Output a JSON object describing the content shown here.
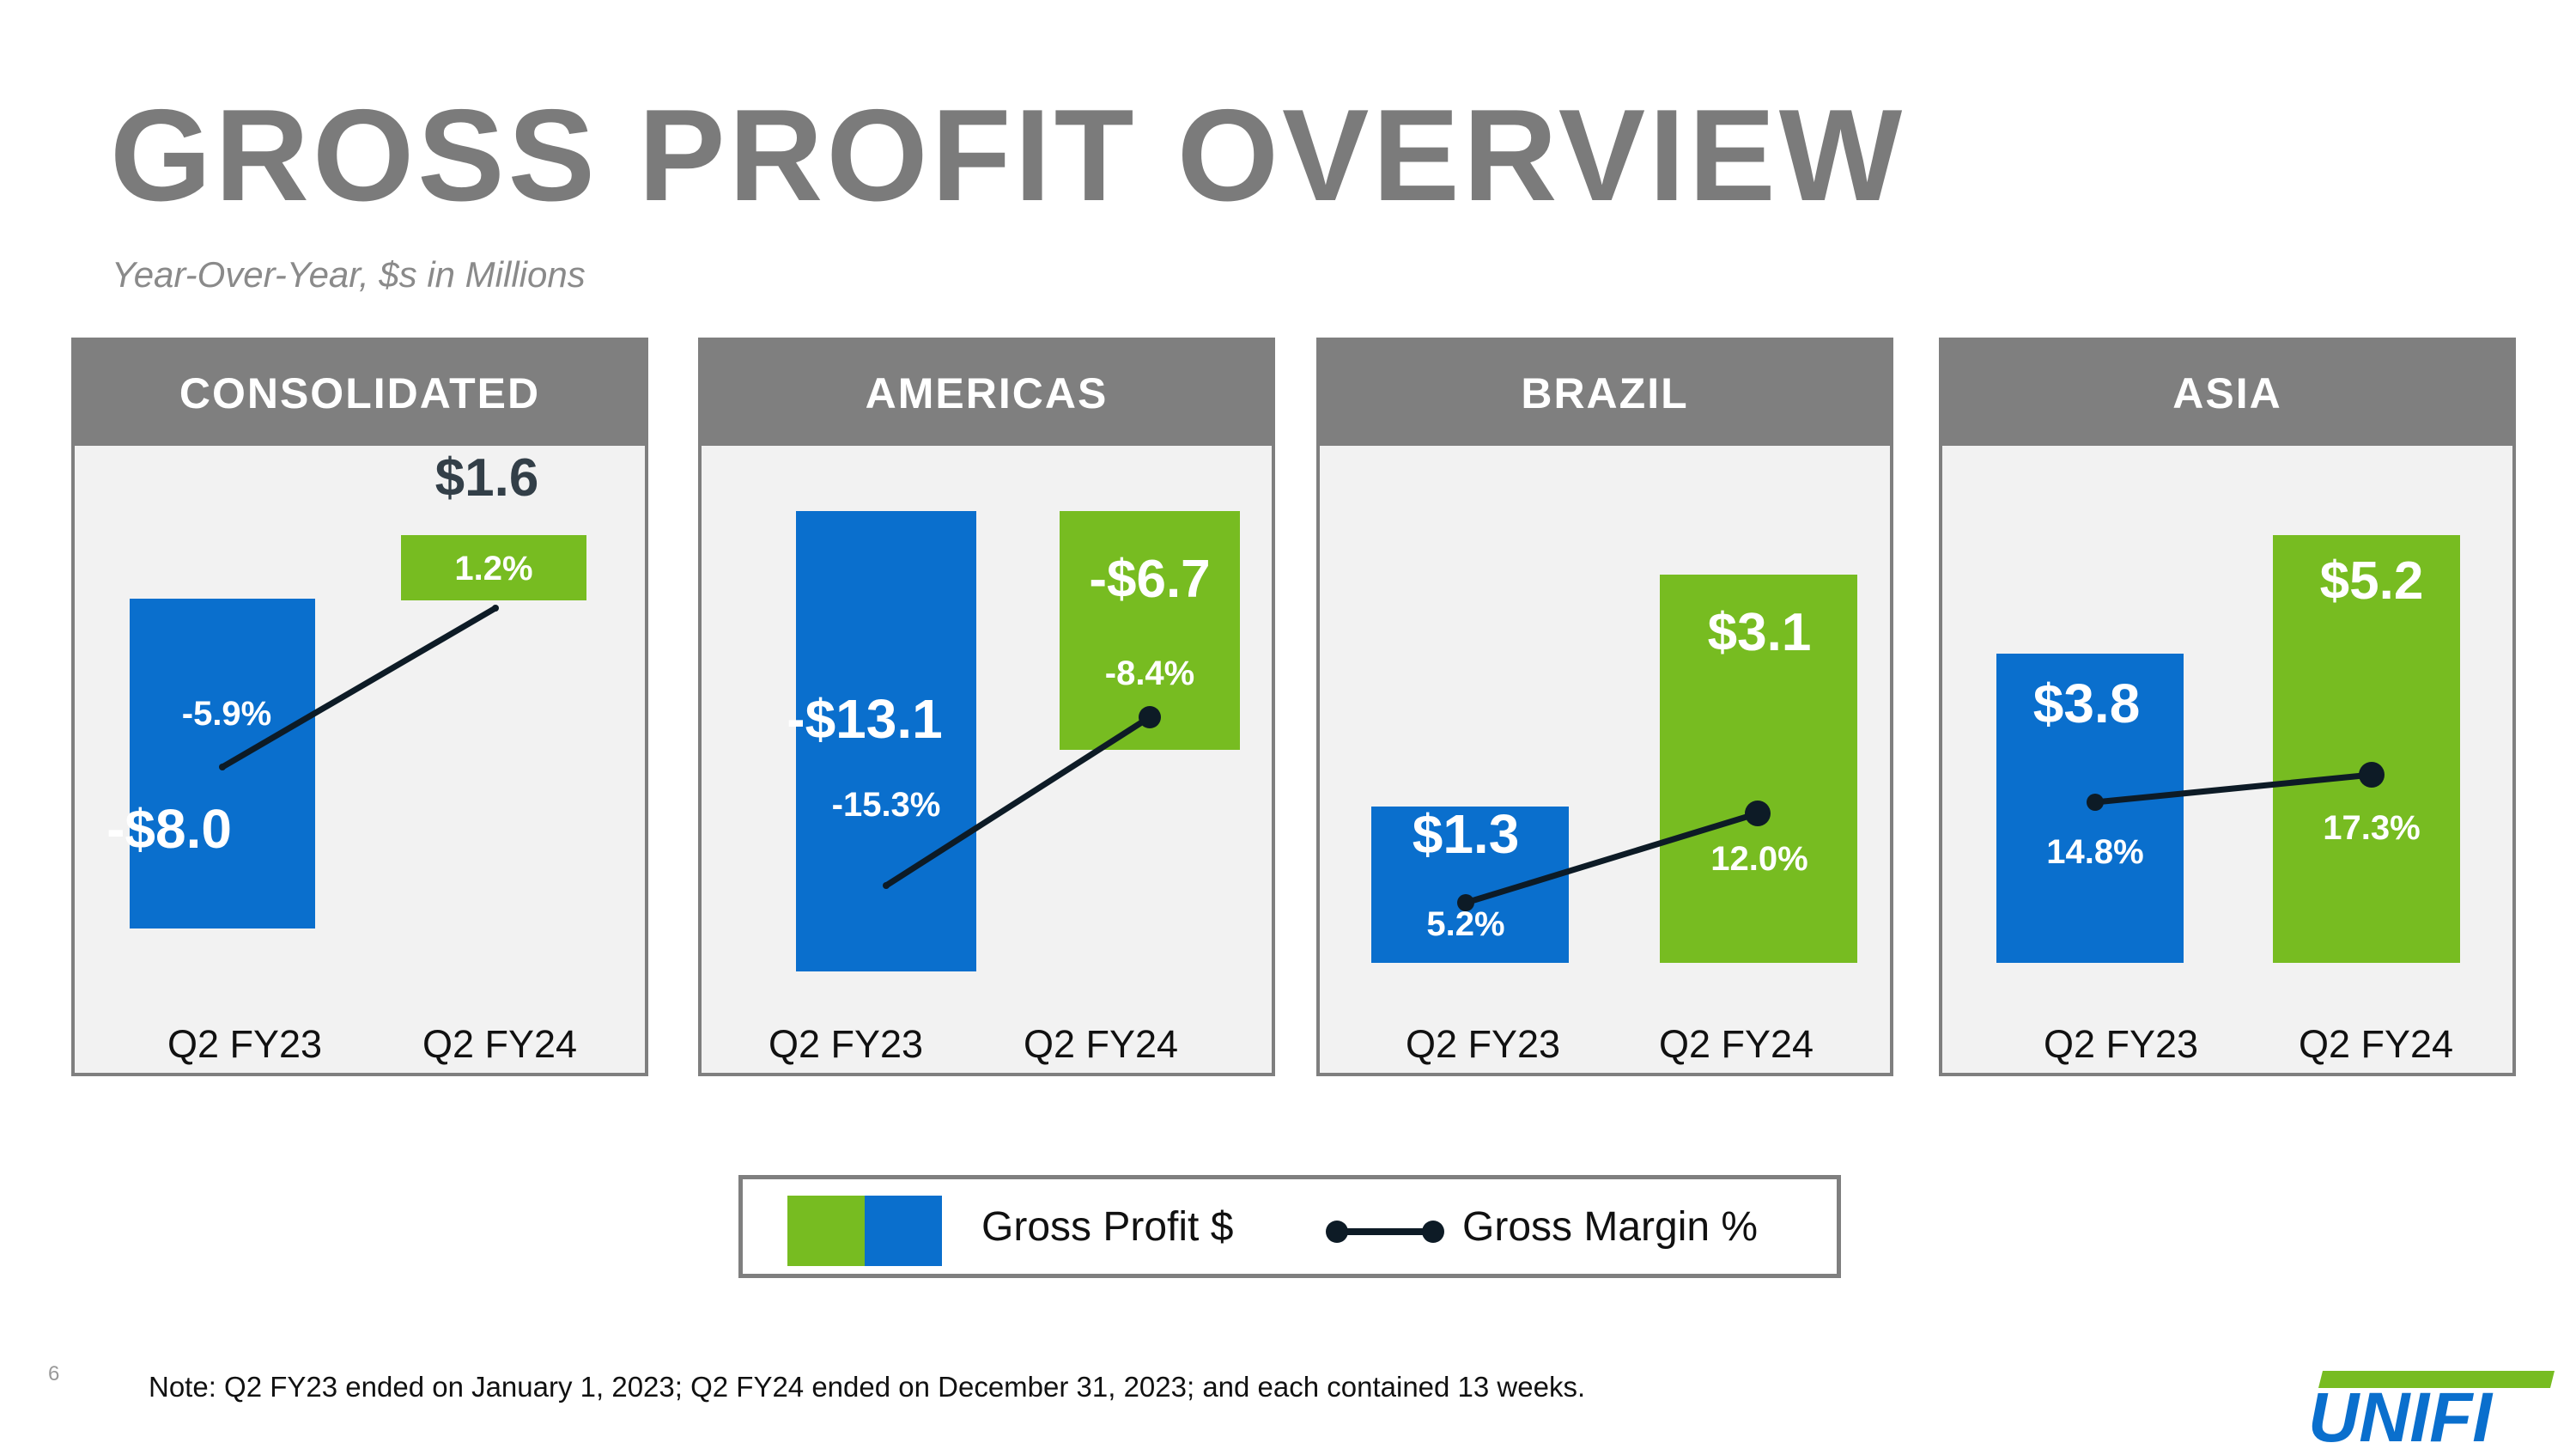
{
  "title": "GROSS PROFIT OVERVIEW",
  "subtitle": "Year-Over-Year, $s in Millions",
  "colors": {
    "fy23": "#0a6fcd",
    "fy24": "#77bc21",
    "line": "#0d1b26",
    "header": "#7f7f7f",
    "panel_bg": "#f2f2f2"
  },
  "chart_data": [
    {
      "type": "bar",
      "title": "CONSOLIDATED",
      "categories": [
        "Q2 FY23",
        "Q2 FY24"
      ],
      "series": [
        {
          "name": "Gross Profit $",
          "values": [
            -8.0,
            1.6
          ],
          "labels": [
            "-$8.0",
            "$1.6"
          ]
        },
        {
          "name": "Gross Margin %",
          "values": [
            -5.9,
            1.2
          ],
          "labels": [
            "-5.9%",
            "1.2%"
          ]
        }
      ]
    },
    {
      "type": "bar",
      "title": "AMERICAS",
      "categories": [
        "Q2 FY23",
        "Q2 FY24"
      ],
      "series": [
        {
          "name": "Gross Profit $",
          "values": [
            -13.1,
            -6.7
          ],
          "labels": [
            "-$13.1",
            "-$6.7"
          ]
        },
        {
          "name": "Gross Margin %",
          "values": [
            -15.3,
            -8.4
          ],
          "labels": [
            "-15.3%",
            "-8.4%"
          ]
        }
      ]
    },
    {
      "type": "bar",
      "title": "BRAZIL",
      "categories": [
        "Q2 FY23",
        "Q2 FY24"
      ],
      "series": [
        {
          "name": "Gross Profit $",
          "values": [
            1.3,
            3.1
          ],
          "labels": [
            "$1.3",
            "$3.1"
          ]
        },
        {
          "name": "Gross Margin %",
          "values": [
            5.2,
            12.0
          ],
          "labels": [
            "5.2%",
            "12.0%"
          ]
        }
      ]
    },
    {
      "type": "bar",
      "title": "ASIA",
      "categories": [
        "Q2 FY23",
        "Q2 FY24"
      ],
      "series": [
        {
          "name": "Gross Profit $",
          "values": [
            3.8,
            5.2
          ],
          "labels": [
            "$3.8",
            "$5.2"
          ]
        },
        {
          "name": "Gross Margin %",
          "values": [
            14.8,
            17.3
          ],
          "labels": [
            "14.8%",
            "17.3%"
          ]
        }
      ]
    }
  ],
  "legend": {
    "profit_label": "Gross Profit $",
    "margin_label": "Gross Margin %"
  },
  "page_number": "6",
  "note": "Note: Q2 FY23 ended on January 1, 2023; Q2 FY24 ended on December 31, 2023; and each contained 13 weeks.",
  "logo_text": "UNIFI"
}
